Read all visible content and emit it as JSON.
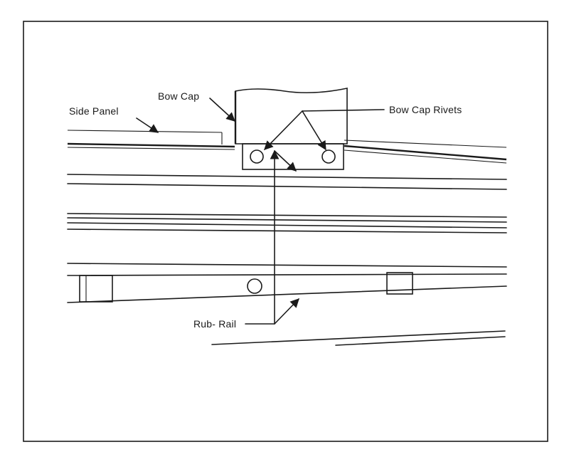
{
  "labels": {
    "side_panel": "Side Panel",
    "bow_cap": "Bow Cap",
    "bow_cap_rivets": "Bow Cap Rivets",
    "rub_rail": "Rub- Rail"
  }
}
